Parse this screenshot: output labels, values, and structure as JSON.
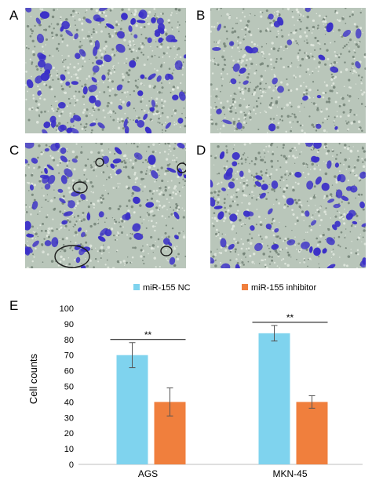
{
  "panels": [
    {
      "letter": "A",
      "density": "high"
    },
    {
      "letter": "B",
      "density": "low"
    },
    {
      "letter": "C",
      "density": "medium"
    },
    {
      "letter": "D",
      "density": "medium"
    }
  ],
  "chart_panel_letter": "E",
  "colors": {
    "stain": "#3a2fc8",
    "background": "#b9c6ba",
    "series_nc": "#7fd3ee",
    "series_inhibitor": "#f07f3d"
  },
  "chart_data": {
    "type": "bar",
    "categories": [
      "AGS",
      "MKN-45"
    ],
    "series": [
      {
        "name": "miR-155 NC",
        "values": [
          70,
          84
        ],
        "errors": [
          8,
          5
        ]
      },
      {
        "name": "miR-155 inhibitor",
        "values": [
          40,
          40
        ],
        "errors": [
          9,
          4
        ]
      }
    ],
    "ylabel": "Cell counts",
    "xlabel": "",
    "ylim": [
      0,
      100
    ],
    "yticks": [
      0,
      10,
      20,
      30,
      40,
      50,
      60,
      70,
      80,
      90,
      100
    ],
    "significance": [
      "**",
      "**"
    ],
    "legend": "top",
    "grid": false
  }
}
